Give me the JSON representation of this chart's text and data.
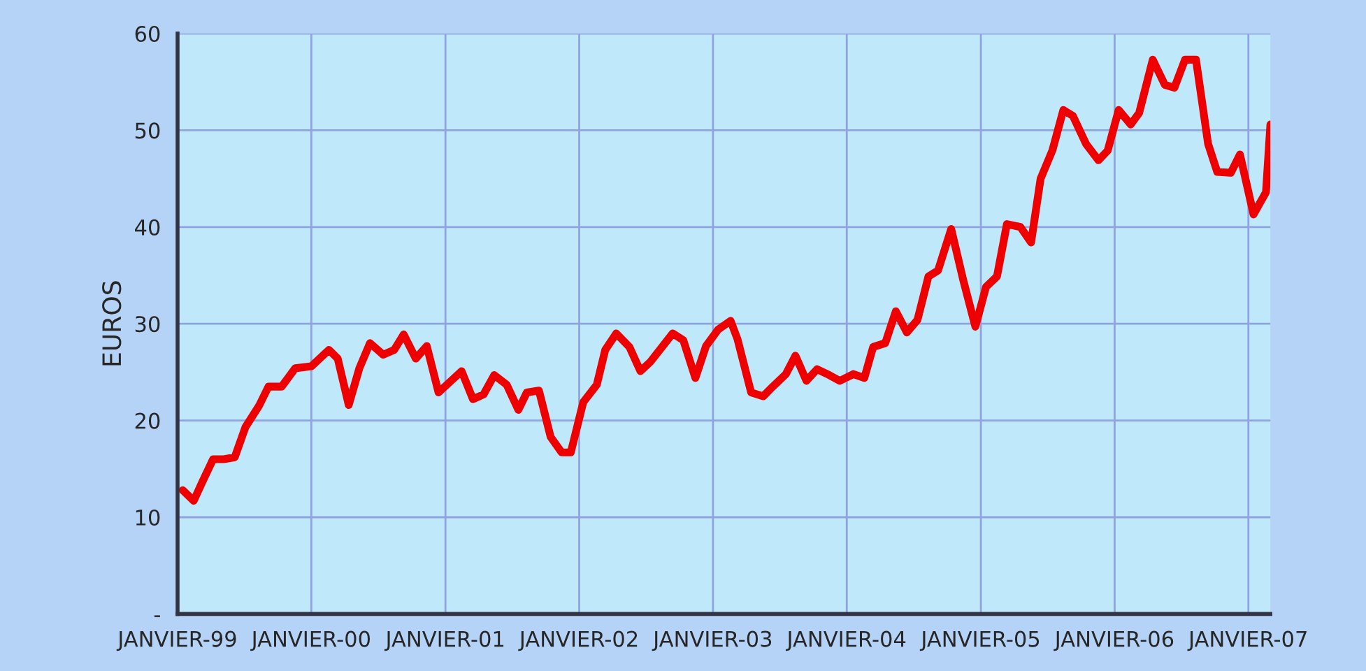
{
  "chart_data": {
    "type": "line",
    "ylabel": "EUROS",
    "xlim": [
      "1999-01-01",
      "2007-03-02"
    ],
    "ylim": [
      0,
      60
    ],
    "xticks": [
      {
        "value": "1999-01-01",
        "label": "JANVIER-99"
      },
      {
        "value": "2000-01-01",
        "label": "JANVIER-00"
      },
      {
        "value": "2001-01-01",
        "label": "JANVIER-01"
      },
      {
        "value": "2002-01-01",
        "label": "JANVIER-02"
      },
      {
        "value": "2003-01-01",
        "label": "JANVIER-03"
      },
      {
        "value": "2004-01-01",
        "label": "JANVIER-04"
      },
      {
        "value": "2005-01-01",
        "label": "JANVIER-05"
      },
      {
        "value": "2006-01-01",
        "label": "JANVIER-06"
      },
      {
        "value": "2007-01-01",
        "label": "JANVIER-07"
      }
    ],
    "yticks": [
      {
        "value": 0,
        "label": "-"
      },
      10,
      20,
      30,
      40,
      50,
      60
    ],
    "grid": true,
    "marker": "none",
    "line_style": "solid",
    "series": [
      {
        "color": "#ee0000",
        "x": [
          "1999-01-15",
          "1999-02-14",
          "1999-03-09",
          "1999-04-08",
          "1999-05-07",
          "1999-06-06",
          "1999-07-05",
          "1999-08-11",
          "1999-09-06",
          "1999-10-12",
          "1999-11-18",
          "2000-01-01",
          "2000-02-18",
          "2000-03-13",
          "2000-04-12",
          "2000-05-11",
          "2000-06-09",
          "2000-07-15",
          "2000-08-14",
          "2000-09-09",
          "2000-10-12",
          "2000-11-11",
          "2000-12-13",
          "2001-02-14",
          "2001-03-17",
          "2001-04-15",
          "2001-05-14",
          "2001-06-17",
          "2001-07-19",
          "2001-08-11",
          "2001-09-13",
          "2001-10-15",
          "2001-11-14",
          "2001-12-09",
          "2002-01-12",
          "2002-02-18",
          "2002-03-13",
          "2002-04-12",
          "2002-05-18",
          "2002-06-17",
          "2002-07-15",
          "2002-09-13",
          "2002-10-12",
          "2002-11-14",
          "2002-12-13",
          "2003-01-15",
          "2003-02-18",
          "2003-03-09",
          "2003-04-15",
          "2003-05-18",
          "2003-06-13",
          "2003-07-19",
          "2003-08-14",
          "2003-09-13",
          "2003-10-12",
          "2003-11-14",
          "2003-12-13",
          "2004-01-19",
          "2004-02-18",
          "2004-03-13",
          "2004-04-15",
          "2004-05-14",
          "2004-06-13",
          "2004-07-12",
          "2004-08-11",
          "2004-09-06",
          "2004-10-12",
          "2004-11-14",
          "2004-12-17",
          "2005-01-15",
          "2005-02-14",
          "2005-03-13",
          "2005-04-19",
          "2005-05-18",
          "2005-06-13",
          "2005-07-15",
          "2005-08-14",
          "2005-09-09",
          "2005-10-15",
          "2005-11-18",
          "2005-12-13",
          "2006-01-12",
          "2006-02-14",
          "2006-03-09",
          "2006-04-15",
          "2006-05-18",
          "2006-06-13",
          "2006-07-12",
          "2006-08-11",
          "2006-09-13",
          "2006-10-08",
          "2006-11-14",
          "2006-12-09",
          "2007-01-15",
          "2007-02-18",
          "2007-03-02"
        ],
        "values": [
          12.8,
          11.7,
          13.6,
          16.0,
          16.0,
          16.2,
          19.3,
          21.5,
          23.5,
          23.5,
          25.4,
          25.6,
          27.3,
          26.4,
          21.6,
          25.4,
          28.0,
          26.8,
          27.3,
          28.9,
          26.4,
          27.7,
          22.9,
          25.1,
          22.2,
          22.7,
          24.7,
          23.7,
          21.1,
          22.9,
          23.1,
          18.3,
          16.7,
          16.7,
          21.9,
          23.7,
          27.3,
          29.0,
          27.6,
          25.1,
          26.1,
          29.0,
          28.3,
          24.4,
          27.7,
          29.4,
          30.3,
          28.4,
          22.9,
          22.5,
          23.5,
          24.8,
          26.7,
          24.1,
          25.3,
          24.7,
          24.1,
          24.8,
          24.4,
          27.6,
          28.0,
          31.3,
          29.1,
          30.4,
          34.9,
          35.5,
          39.8,
          34.5,
          29.7,
          33.8,
          34.9,
          40.3,
          40.0,
          38.4,
          45.0,
          47.9,
          52.1,
          51.5,
          48.6,
          46.9,
          47.9,
          52.1,
          50.6,
          51.8,
          57.3,
          54.7,
          54.4,
          57.3,
          57.3,
          48.6,
          45.7,
          45.6,
          47.5,
          41.3,
          43.6,
          50.6
        ]
      }
    ]
  }
}
